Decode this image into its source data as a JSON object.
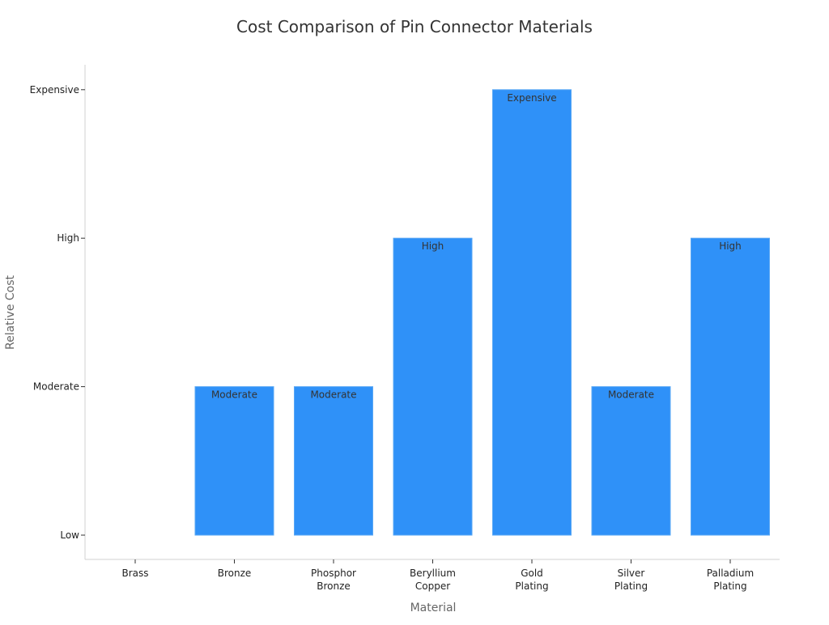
{
  "chart_data": {
    "type": "bar",
    "title": "Cost Comparison of Pin Connector Materials",
    "xlabel": "Material",
    "ylabel": "Relative Cost",
    "categories": [
      [
        "Brass"
      ],
      [
        "Bronze"
      ],
      [
        "Phosphor",
        "Bronze"
      ],
      [
        "Beryllium",
        "Copper"
      ],
      [
        "Gold",
        "Plating"
      ],
      [
        "Silver",
        "Plating"
      ],
      [
        "Palladium",
        "Plating"
      ]
    ],
    "y_tick_labels": [
      "Low",
      "Moderate",
      "High",
      "Expensive"
    ],
    "values": [
      0,
      1,
      1,
      2,
      3,
      1,
      2
    ],
    "data_labels": [
      "",
      "Moderate",
      "Moderate",
      "High",
      "Expensive",
      "Moderate",
      "High"
    ],
    "ylim": [
      -0.16,
      3.16
    ],
    "grid": false,
    "bar_color": "#2f91f8"
  }
}
